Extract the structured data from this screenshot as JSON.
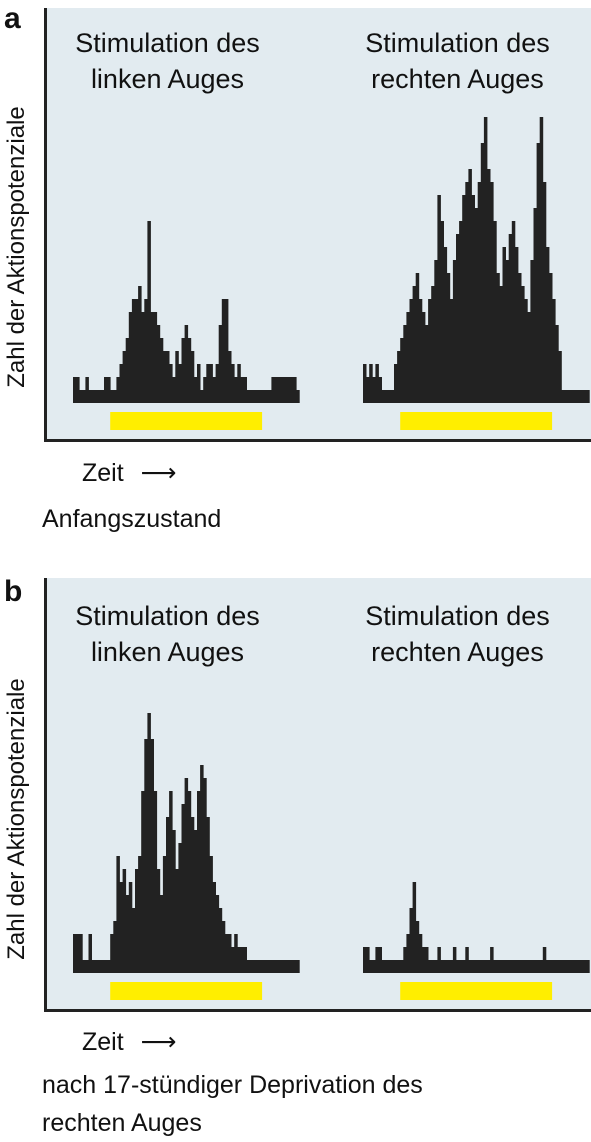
{
  "figure": {
    "panels": [
      {
        "letter": "a",
        "ylabel": "Zahl der Aktionspotenziale",
        "xlabel": "Zeit",
        "arrow": "⟶",
        "titles": [
          [
            "Stimulation des",
            "linken Auges"
          ],
          [
            "Stimulation des",
            "rechten Auges"
          ]
        ],
        "caption": [
          "Anfangszustand"
        ]
      },
      {
        "letter": "b",
        "ylabel": "Zahl der Aktionspotenziale",
        "xlabel": "Zeit",
        "arrow": "⟶",
        "titles": [
          [
            "Stimulation des",
            "linken Auges"
          ],
          [
            "Stimulation des",
            "rechten Auges"
          ]
        ],
        "caption": [
          "nach 17-stündiger Deprivation des",
          "rechten Auges"
        ]
      }
    ],
    "stimulus_bar_color": "#ffee00",
    "histogram_color": "#222222",
    "background_color": "#e2ebf0"
  },
  "chart_data": [
    {
      "type": "bar",
      "panel": "a",
      "series": [
        {
          "name": "Stimulation des linken Auges",
          "values": [
            2,
            2,
            1,
            1,
            2,
            1,
            1,
            1,
            1,
            1,
            2,
            2,
            1,
            1,
            2,
            3,
            4,
            5,
            7,
            8,
            8,
            9,
            7,
            8,
            14,
            7,
            7,
            6,
            5,
            4,
            4,
            3,
            2,
            4,
            3,
            5,
            6,
            5,
            4,
            2,
            3,
            1,
            2,
            3,
            3,
            2,
            3,
            6,
            8,
            8,
            4,
            3,
            2,
            3,
            2,
            2,
            1,
            1,
            1,
            1,
            1,
            1,
            1,
            1,
            2,
            2,
            2,
            2,
            2,
            2,
            2,
            2,
            1
          ]
        },
        {
          "name": "Stimulation des rechten Auges",
          "values": [
            3,
            2,
            3,
            2,
            3,
            2,
            1,
            1,
            1,
            1,
            3,
            4,
            5,
            6,
            7,
            8,
            9,
            10,
            8,
            7,
            6,
            8,
            9,
            11,
            16,
            14,
            12,
            10,
            8,
            11,
            13,
            14,
            16,
            17,
            18,
            16,
            15,
            17,
            20,
            22,
            18,
            17,
            14,
            10,
            9,
            12,
            11,
            13,
            14,
            12,
            10,
            9,
            8,
            7,
            11,
            15,
            20,
            22,
            17,
            12,
            10,
            8,
            6,
            4,
            1,
            1,
            1,
            1,
            1,
            1,
            1,
            1,
            1
          ]
        }
      ],
      "stimulus": {
        "start_bin": 12,
        "end_bin": 61
      }
    },
    {
      "type": "bar",
      "panel": "b",
      "series": [
        {
          "name": "Stimulation des linken Auges",
          "values": [
            3,
            3,
            3,
            1,
            1,
            3,
            1,
            1,
            1,
            1,
            1,
            1,
            3,
            4,
            9,
            7,
            8,
            6,
            7,
            5,
            8,
            9,
            14,
            18,
            20,
            18,
            14,
            8,
            6,
            9,
            12,
            14,
            11,
            8,
            10,
            13,
            15,
            14,
            12,
            11,
            14,
            16,
            15,
            12,
            9,
            7,
            6,
            5,
            4,
            3,
            3,
            2,
            3,
            2,
            2,
            2,
            1,
            1,
            1,
            1,
            1,
            1,
            1,
            1,
            1,
            1,
            1,
            1,
            1,
            1,
            1,
            1,
            1
          ]
        },
        {
          "name": "Stimulation des rechten Auges",
          "values": [
            2,
            2,
            1,
            1,
            2,
            2,
            1,
            1,
            1,
            1,
            1,
            1,
            1,
            2,
            3,
            5,
            7,
            4,
            3,
            2,
            2,
            1,
            1,
            1,
            2,
            1,
            1,
            1,
            1,
            2,
            1,
            1,
            1,
            2,
            1,
            1,
            1,
            1,
            1,
            1,
            1,
            2,
            1,
            1,
            1,
            1,
            1,
            1,
            1,
            1,
            1,
            1,
            1,
            1,
            1,
            1,
            1,
            1,
            2,
            1,
            1,
            1,
            1,
            1,
            1,
            1,
            1,
            1,
            1,
            1,
            1,
            1,
            1
          ]
        }
      ],
      "stimulus": {
        "start_bin": 12,
        "end_bin": 61
      }
    }
  ]
}
